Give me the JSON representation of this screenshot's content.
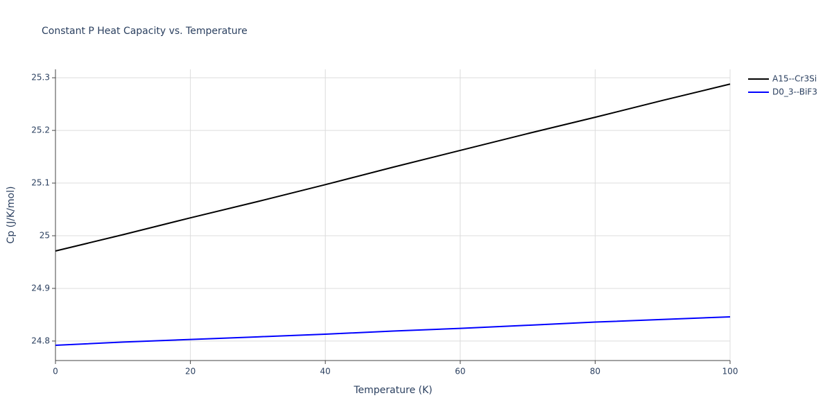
{
  "chart_data": {
    "type": "line",
    "title": "Constant P Heat Capacity vs. Temperature",
    "x_label": "Temperature (K)",
    "y_label": "Cp (J/K/mol)",
    "x": [
      0,
      10,
      20,
      30,
      40,
      50,
      60,
      70,
      80,
      90,
      100
    ],
    "series": [
      {
        "name": "A15--Cr3Si",
        "color": "#000000",
        "values": [
          24.971,
          25.002,
          25.034,
          25.065,
          25.097,
          25.13,
          25.162,
          25.194,
          25.225,
          25.257,
          25.288
        ]
      },
      {
        "name": "D0_3--BiF3",
        "color": "#0000ff",
        "values": [
          24.792,
          24.798,
          24.803,
          24.808,
          24.813,
          24.819,
          24.824,
          24.83,
          24.836,
          24.841,
          24.846
        ]
      }
    ],
    "xlim": [
      0,
      100
    ],
    "xticks": [
      0,
      20,
      40,
      60,
      80,
      100
    ],
    "ylim": [
      24.763,
      25.316
    ],
    "yticks": [
      24.8,
      24.9,
      25,
      25.1,
      25.2,
      25.3
    ],
    "grid": true,
    "legend": "top-right"
  }
}
